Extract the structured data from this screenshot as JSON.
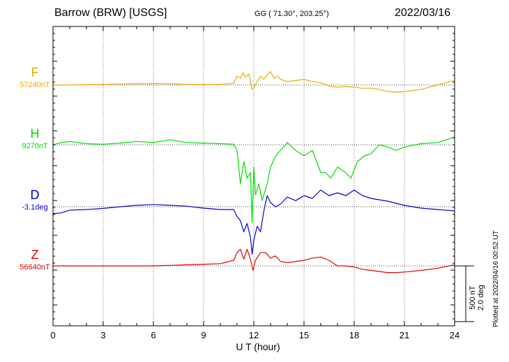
{
  "header": {
    "station": "Barrow (BRW)  [USGS]",
    "coords": "GG ( 71.30°, 203.25°)",
    "date": "2022/03/16"
  },
  "footer": {
    "xlabel": "U T (hour)",
    "plotted": "Plotted at 2022/04/16 00:52 UT",
    "scale_line1": "500 nT",
    "scale_line2": "2.0 deg"
  },
  "colors": {
    "F": "#f0a800",
    "H": "#00dd00",
    "D": "#0000cc",
    "Z": "#e00000"
  },
  "chart_data": {
    "type": "line",
    "xlabel": "U T (hour)",
    "xlim": [
      0,
      24
    ],
    "xticks": [
      0,
      3,
      6,
      9,
      12,
      15,
      18,
      21,
      24
    ],
    "scale_bar": {
      "nT": 500,
      "deg": 2.0
    },
    "series": [
      {
        "name": "F",
        "baseline_label": "57240nT",
        "unit": "nT",
        "baseline": 57240,
        "x": [
          0,
          1,
          2,
          3,
          4,
          5,
          6,
          7,
          8,
          9,
          10,
          10.8,
          11.0,
          11.2,
          11.35,
          11.5,
          11.7,
          11.9,
          12.0,
          12.2,
          12.4,
          12.6,
          12.8,
          13.0,
          13.2,
          13.4,
          13.6,
          14.0,
          14.5,
          15.0,
          15.5,
          16.0,
          16.5,
          17.0,
          17.5,
          18.0,
          18.5,
          19.0,
          19.5,
          20.0,
          20.5,
          21.0,
          21.5,
          22.0,
          22.5,
          23.0,
          23.5,
          24.0
        ],
        "y": [
          -2,
          0,
          2,
          5,
          8,
          10,
          12,
          10,
          5,
          3,
          5,
          15,
          80,
          60,
          110,
          70,
          100,
          -40,
          -20,
          30,
          80,
          50,
          90,
          120,
          60,
          80,
          50,
          30,
          40,
          50,
          30,
          20,
          -10,
          -20,
          -15,
          -20,
          -30,
          -30,
          -40,
          -60,
          -65,
          -60,
          -50,
          -40,
          -20,
          0,
          20,
          40
        ]
      },
      {
        "name": "H",
        "baseline_label": "9270nT",
        "unit": "nT",
        "baseline": 9270,
        "x": [
          0,
          0.5,
          1,
          2,
          3,
          4,
          5,
          6,
          7,
          8,
          9,
          10,
          10.8,
          11.0,
          11.2,
          11.4,
          11.6,
          11.8,
          11.9,
          12.0,
          12.1,
          12.3,
          12.5,
          12.8,
          13.0,
          13.3,
          13.6,
          14.0,
          14.5,
          15.0,
          15.5,
          16.0,
          16.3,
          16.6,
          17.0,
          17.5,
          17.8,
          18.2,
          18.6,
          19.0,
          19.5,
          20.0,
          20.5,
          21.0,
          22.0,
          23.0,
          24.0
        ],
        "y": [
          0,
          20,
          30,
          10,
          5,
          15,
          30,
          20,
          45,
          20,
          15,
          10,
          5,
          -50,
          -350,
          -150,
          -300,
          -250,
          -700,
          -200,
          -450,
          -350,
          -500,
          -350,
          -200,
          -100,
          -50,
          20,
          -50,
          -100,
          -50,
          -250,
          -250,
          -300,
          -200,
          -250,
          -300,
          -150,
          -100,
          -80,
          0,
          -20,
          -50,
          -20,
          10,
          20,
          70
        ]
      },
      {
        "name": "D",
        "baseline_label": "-3.1deg",
        "unit": "deg",
        "baseline": -3.1,
        "x": [
          0,
          0.5,
          1,
          2,
          3,
          4,
          5,
          6,
          7,
          8,
          9,
          10,
          10.8,
          11.0,
          11.2,
          11.4,
          11.6,
          11.8,
          11.9,
          12.0,
          12.2,
          12.4,
          12.6,
          12.8,
          13.0,
          13.3,
          13.6,
          14.0,
          14.5,
          15.0,
          15.5,
          16.0,
          16.5,
          17.0,
          17.5,
          18.0,
          18.5,
          19.0,
          19.5,
          20.0,
          21.0,
          22.0,
          23.0,
          24.0
        ],
        "y": [
          -0.25,
          -0.22,
          -0.12,
          -0.1,
          -0.06,
          0,
          0.05,
          0.08,
          0.05,
          0.02,
          -0.05,
          -0.1,
          -0.1,
          -0.35,
          -0.5,
          -0.9,
          -0.6,
          -1.1,
          -1.7,
          -1.2,
          -0.7,
          -0.9,
          -0.15,
          0.4,
          0.15,
          0.0,
          0.1,
          0.35,
          0.22,
          0.4,
          0.3,
          0.6,
          0.4,
          0.5,
          0.4,
          0.6,
          0.4,
          0.3,
          0.25,
          0.2,
          0.05,
          -0.05,
          -0.1,
          -0.15
        ]
      },
      {
        "name": "Z",
        "baseline_label": "56640nT",
        "unit": "nT",
        "baseline": 56640,
        "x": [
          0,
          1,
          2,
          3,
          4,
          5,
          6,
          7,
          8,
          9,
          10,
          10.8,
          11.0,
          11.2,
          11.4,
          11.6,
          11.8,
          11.95,
          12.1,
          12.4,
          12.7,
          13.0,
          13.3,
          13.6,
          14.0,
          14.5,
          15.0,
          15.5,
          16.0,
          16.5,
          17.0,
          17.5,
          18.0,
          18.5,
          19.0,
          19.5,
          20.0,
          20.5,
          21.0,
          22.0,
          23.0,
          24.0
        ],
        "y": [
          0,
          0,
          0,
          0,
          0,
          0,
          0,
          5,
          10,
          15,
          20,
          50,
          120,
          150,
          60,
          150,
          60,
          -40,
          50,
          120,
          120,
          70,
          90,
          40,
          30,
          40,
          50,
          70,
          80,
          50,
          0,
          0,
          -10,
          -30,
          -40,
          -50,
          -60,
          -60,
          -55,
          -40,
          -20,
          10
        ]
      }
    ]
  }
}
